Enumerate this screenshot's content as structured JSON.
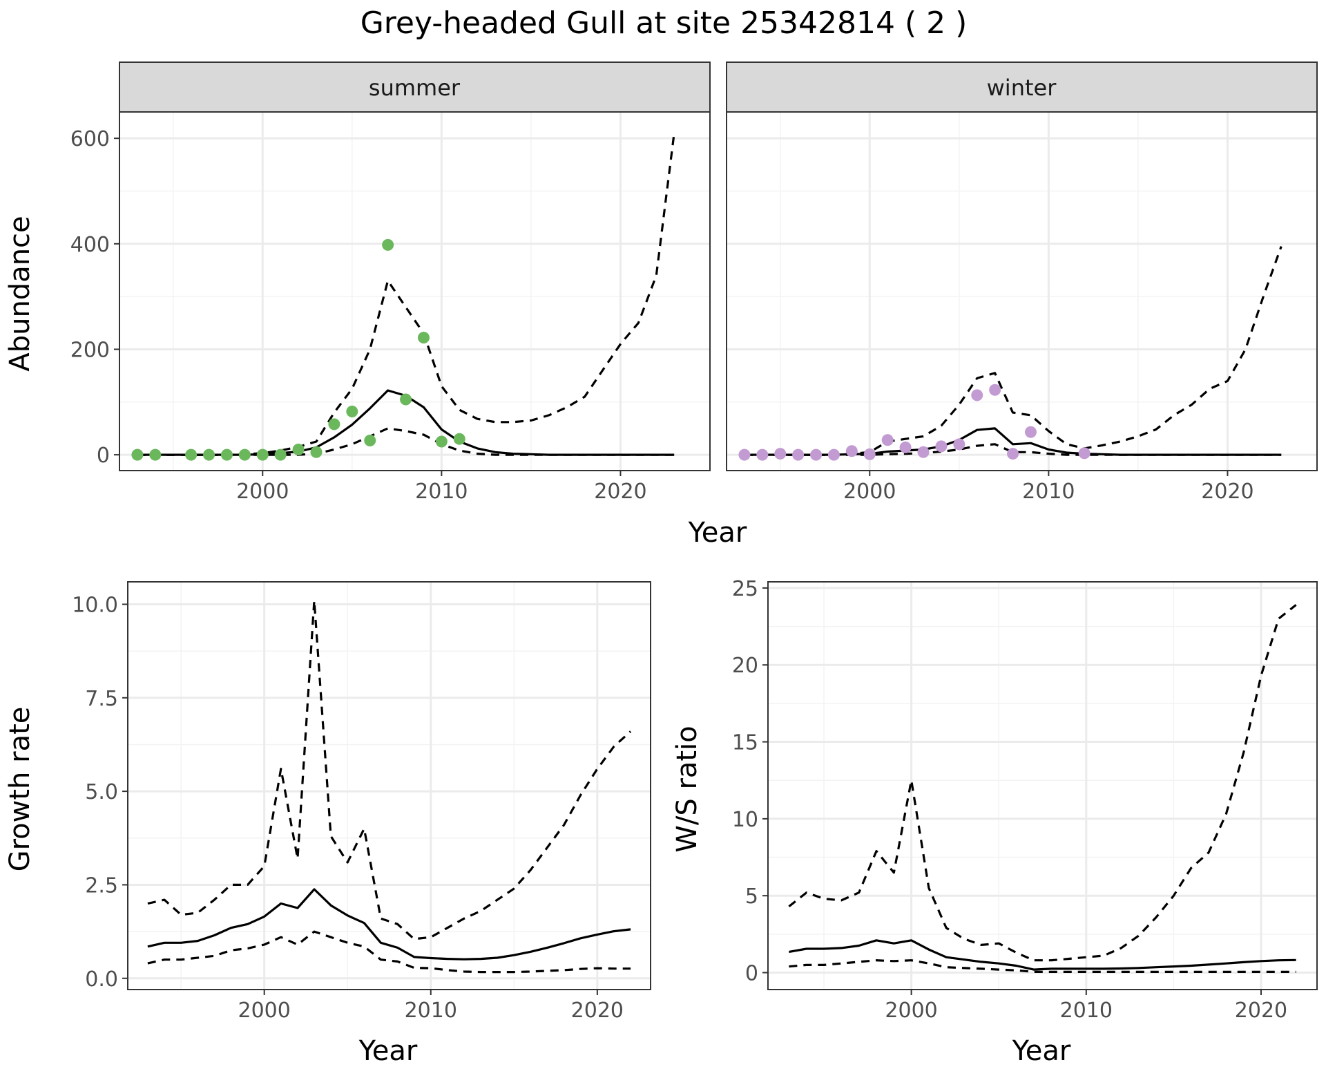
{
  "title": "Grey-headed Gull at site 25342814 ( 2 )",
  "colors": {
    "summer_points": "#6ab85b",
    "winter_points": "#c39bd3",
    "line": "#000000",
    "strip_fill": "#d9d9d9",
    "grid_major": "#ebebeb",
    "grid_minor": "#f3f3f3",
    "panel_border": "#333333",
    "tick_text": "#4d4d4d"
  },
  "chart_data": [
    {
      "id": "abundance",
      "type": "line",
      "xlabel": "Year",
      "ylabel": "Abundance",
      "xlim": [
        1992,
        2025
      ],
      "ylim": [
        -30,
        650
      ],
      "xticks": [
        2000,
        2010,
        2020
      ],
      "xtick_labels": [
        "2000",
        "2010",
        "2020"
      ],
      "yticks": [
        0,
        200,
        400,
        600
      ],
      "ytick_labels": [
        "0",
        "200",
        "400",
        "600"
      ],
      "grid": true,
      "facets": [
        {
          "strip": "summer",
          "points_color_key": "summer_points",
          "points": {
            "x": [
              1993,
              1994,
              1996,
              1997,
              1998,
              1999,
              2000,
              2001,
              2002,
              2003,
              2004,
              2005,
              2006,
              2007,
              2008,
              2009,
              2010,
              2011
            ],
            "y": [
              0,
              0,
              0,
              0,
              0,
              0,
              0,
              0,
              10,
              5,
              58,
              82,
              27,
              398,
              105,
              222,
              25,
              30
            ]
          },
          "series": [
            {
              "style": "solid",
              "x": [
                1993,
                1994,
                1995,
                1996,
                1997,
                1998,
                1999,
                2000,
                2001,
                2002,
                2003,
                2004,
                2005,
                2006,
                2007,
                2008,
                2009,
                2010,
                2011,
                2012,
                2013,
                2014,
                2015,
                2016,
                2017,
                2018,
                2019,
                2020,
                2021,
                2022,
                2023
              ],
              "y": [
                0,
                0,
                0,
                0,
                0,
                0,
                0,
                1,
                3,
                6,
                14,
                33,
                57,
                88,
                122,
                112,
                90,
                48,
                25,
                12,
                5,
                2,
                1,
                0,
                0,
                0,
                0,
                0,
                0,
                0,
                0
              ]
            },
            {
              "style": "dashed",
              "x": [
                1993,
                1994,
                1995,
                1996,
                1997,
                1998,
                1999,
                2000,
                2001,
                2002,
                2003,
                2004,
                2005,
                2006,
                2007,
                2008,
                2009,
                2010,
                2011,
                2012,
                2013,
                2014,
                2015,
                2016,
                2017,
                2018,
                2019,
                2020,
                2021,
                2022,
                2023
              ],
              "y": [
                0,
                0,
                0,
                0,
                0,
                0,
                1,
                3,
                8,
                15,
                25,
                80,
                125,
                200,
                330,
                280,
                230,
                130,
                85,
                68,
                62,
                62,
                65,
                75,
                90,
                110,
                160,
                210,
                250,
                340,
                610
              ]
            },
            {
              "style": "dashed",
              "x": [
                1993,
                1994,
                1995,
                1996,
                1997,
                1998,
                1999,
                2000,
                2001,
                2002,
                2003,
                2004,
                2005,
                2006,
                2007,
                2008,
                2009,
                2010,
                2011,
                2012,
                2013,
                2014,
                2015,
                2016,
                2017,
                2018,
                2019,
                2020,
                2021,
                2022,
                2023
              ],
              "y": [
                0,
                0,
                0,
                0,
                0,
                0,
                0,
                0,
                0,
                0,
                2,
                10,
                20,
                35,
                50,
                45,
                38,
                20,
                8,
                2,
                0,
                0,
                0,
                0,
                0,
                0,
                0,
                0,
                0,
                0,
                0
              ]
            }
          ]
        },
        {
          "strip": "winter",
          "points_color_key": "winter_points",
          "points": {
            "x": [
              1993,
              1994,
              1995,
              1996,
              1997,
              1998,
              1999,
              2000,
              2001,
              2002,
              2003,
              2004,
              2005,
              2006,
              2007,
              2008,
              2009,
              2012
            ],
            "y": [
              0,
              0,
              2,
              0,
              0,
              0,
              7,
              1,
              28,
              14,
              5,
              16,
              20,
              113,
              123,
              2,
              43,
              3
            ]
          },
          "series": [
            {
              "style": "solid",
              "x": [
                1993,
                1994,
                1995,
                1996,
                1997,
                1998,
                1999,
                2000,
                2001,
                2002,
                2003,
                2004,
                2005,
                2006,
                2007,
                2008,
                2009,
                2010,
                2011,
                2012,
                2013,
                2014,
                2015,
                2016,
                2017,
                2018,
                2019,
                2020,
                2021,
                2022,
                2023
              ],
              "y": [
                0,
                0,
                0,
                0,
                0,
                0,
                1,
                2,
                6,
                8,
                10,
                16,
                28,
                47,
                50,
                20,
                22,
                10,
                4,
                2,
                1,
                0,
                0,
                0,
                0,
                0,
                0,
                0,
                0,
                0,
                0
              ]
            },
            {
              "style": "dashed",
              "x": [
                1993,
                1994,
                1995,
                1996,
                1997,
                1998,
                1999,
                2000,
                2001,
                2002,
                2003,
                2004,
                2005,
                2006,
                2007,
                2008,
                2009,
                2010,
                2011,
                2012,
                2013,
                2014,
                2015,
                2016,
                2017,
                2018,
                2019,
                2020,
                2021,
                2022,
                2023
              ],
              "y": [
                0,
                0,
                0,
                0,
                0,
                0,
                2,
                5,
                25,
                30,
                35,
                55,
                95,
                145,
                155,
                80,
                75,
                45,
                20,
                12,
                18,
                25,
                35,
                48,
                75,
                95,
                125,
                140,
                200,
                300,
                395
              ]
            },
            {
              "style": "dashed",
              "x": [
                1993,
                1994,
                1995,
                1996,
                1997,
                1998,
                1999,
                2000,
                2001,
                2002,
                2003,
                2004,
                2005,
                2006,
                2007,
                2008,
                2009,
                2010,
                2011,
                2012,
                2013,
                2014,
                2015,
                2016,
                2017,
                2018,
                2019,
                2020,
                2021,
                2022,
                2023
              ],
              "y": [
                0,
                0,
                0,
                0,
                0,
                0,
                0,
                0,
                1,
                2,
                3,
                6,
                10,
                17,
                20,
                5,
                5,
                2,
                0,
                0,
                0,
                0,
                0,
                0,
                0,
                0,
                0,
                0,
                0,
                0,
                0
              ]
            }
          ]
        }
      ]
    },
    {
      "id": "growth",
      "type": "line",
      "xlabel": "Year",
      "ylabel": "Growth rate",
      "xlim": [
        1991.8,
        2023.2
      ],
      "ylim": [
        -0.3,
        10.6
      ],
      "xticks": [
        2000,
        2010,
        2020
      ],
      "xtick_labels": [
        "2000",
        "2010",
        "2020"
      ],
      "yticks": [
        0,
        2.5,
        5,
        7.5,
        10
      ],
      "ytick_labels": [
        "0.0",
        "2.5",
        "5.0",
        "7.5",
        "10.0"
      ],
      "grid": true,
      "series": [
        {
          "style": "solid",
          "x": [
            1993,
            1994,
            1995,
            1996,
            1997,
            1998,
            1999,
            2000,
            2001,
            2002,
            2003,
            2004,
            2005,
            2006,
            2007,
            2008,
            2009,
            2010,
            2011,
            2012,
            2013,
            2014,
            2015,
            2016,
            2017,
            2018,
            2019,
            2020,
            2021,
            2022
          ],
          "y": [
            0.85,
            0.95,
            0.95,
            1.0,
            1.15,
            1.35,
            1.45,
            1.65,
            2.0,
            1.88,
            2.38,
            1.95,
            1.68,
            1.48,
            0.95,
            0.82,
            0.57,
            0.54,
            0.52,
            0.51,
            0.52,
            0.55,
            0.62,
            0.71,
            0.82,
            0.94,
            1.07,
            1.17,
            1.26,
            1.31
          ]
        },
        {
          "style": "dashed",
          "x": [
            1993,
            1994,
            1995,
            1996,
            1997,
            1998,
            1999,
            2000,
            2001,
            2002,
            2003,
            2004,
            2005,
            2006,
            2007,
            2008,
            2009,
            2010,
            2011,
            2012,
            2013,
            2014,
            2015,
            2016,
            2017,
            2018,
            2019,
            2020,
            2021,
            2022
          ],
          "y": [
            2.0,
            2.1,
            1.7,
            1.75,
            2.1,
            2.5,
            2.5,
            3.0,
            5.6,
            3.2,
            10.1,
            3.8,
            3.1,
            4.0,
            1.6,
            1.45,
            1.05,
            1.1,
            1.35,
            1.6,
            1.8,
            2.1,
            2.4,
            2.9,
            3.5,
            4.1,
            4.9,
            5.6,
            6.2,
            6.6
          ]
        },
        {
          "style": "dashed",
          "x": [
            1993,
            1994,
            1995,
            1996,
            1997,
            1998,
            1999,
            2000,
            2001,
            2002,
            2003,
            2004,
            2005,
            2006,
            2007,
            2008,
            2009,
            2010,
            2011,
            2012,
            2013,
            2014,
            2015,
            2016,
            2017,
            2018,
            2019,
            2020,
            2021,
            2022
          ],
          "y": [
            0.4,
            0.5,
            0.5,
            0.55,
            0.6,
            0.75,
            0.8,
            0.9,
            1.1,
            0.9,
            1.25,
            1.1,
            0.95,
            0.85,
            0.5,
            0.45,
            0.28,
            0.27,
            0.22,
            0.18,
            0.17,
            0.17,
            0.17,
            0.18,
            0.2,
            0.22,
            0.25,
            0.27,
            0.26,
            0.26
          ]
        }
      ]
    },
    {
      "id": "ratio",
      "type": "line",
      "xlabel": "Year",
      "ylabel": "W/S ratio",
      "xlim": [
        1991.8,
        2023.2
      ],
      "ylim": [
        -1.1,
        25.4
      ],
      "xticks": [
        2000,
        2010,
        2020
      ],
      "xtick_labels": [
        "2000",
        "2010",
        "2020"
      ],
      "yticks": [
        0,
        5,
        10,
        15,
        20,
        25
      ],
      "ytick_labels": [
        "0",
        "5",
        "10",
        "15",
        "20",
        "25"
      ],
      "grid": true,
      "series": [
        {
          "style": "solid",
          "x": [
            1993,
            1994,
            1995,
            1996,
            1997,
            1998,
            1999,
            2000,
            2001,
            2002,
            2003,
            2004,
            2005,
            2006,
            2007,
            2008,
            2009,
            2010,
            2011,
            2012,
            2013,
            2014,
            2015,
            2016,
            2017,
            2018,
            2019,
            2020,
            2021,
            2022
          ],
          "y": [
            1.35,
            1.55,
            1.55,
            1.6,
            1.75,
            2.1,
            1.9,
            2.1,
            1.5,
            1.0,
            0.85,
            0.7,
            0.6,
            0.45,
            0.2,
            0.25,
            0.25,
            0.25,
            0.25,
            0.27,
            0.3,
            0.35,
            0.4,
            0.45,
            0.52,
            0.6,
            0.68,
            0.75,
            0.8,
            0.82
          ]
        },
        {
          "style": "dashed",
          "x": [
            1993,
            1994,
            1995,
            1996,
            1997,
            1998,
            1999,
            2000,
            2001,
            2002,
            2003,
            2004,
            2005,
            2006,
            2007,
            2008,
            2009,
            2010,
            2011,
            2012,
            2013,
            2014,
            2015,
            2016,
            2017,
            2018,
            2019,
            2020,
            2021,
            2022
          ],
          "y": [
            4.3,
            5.2,
            4.8,
            4.7,
            5.2,
            7.9,
            6.5,
            12.5,
            5.5,
            2.9,
            2.2,
            1.8,
            1.9,
            1.3,
            0.8,
            0.8,
            0.9,
            1.0,
            1.1,
            1.6,
            2.4,
            3.6,
            5.0,
            6.8,
            7.8,
            10.3,
            14.3,
            19.3,
            23.0,
            23.9
          ]
        },
        {
          "style": "dashed",
          "x": [
            1993,
            1994,
            1995,
            1996,
            1997,
            1998,
            1999,
            2000,
            2001,
            2002,
            2003,
            2004,
            2005,
            2006,
            2007,
            2008,
            2009,
            2010,
            2011,
            2012,
            2013,
            2014,
            2015,
            2016,
            2017,
            2018,
            2019,
            2020,
            2021,
            2022
          ],
          "y": [
            0.4,
            0.5,
            0.5,
            0.6,
            0.7,
            0.8,
            0.75,
            0.8,
            0.6,
            0.35,
            0.3,
            0.25,
            0.2,
            0.15,
            0.05,
            0.05,
            0.05,
            0.05,
            0.05,
            0.05,
            0.05,
            0.05,
            0.05,
            0.05,
            0.05,
            0.05,
            0.05,
            0.05,
            0.05,
            0.05
          ]
        }
      ]
    }
  ]
}
